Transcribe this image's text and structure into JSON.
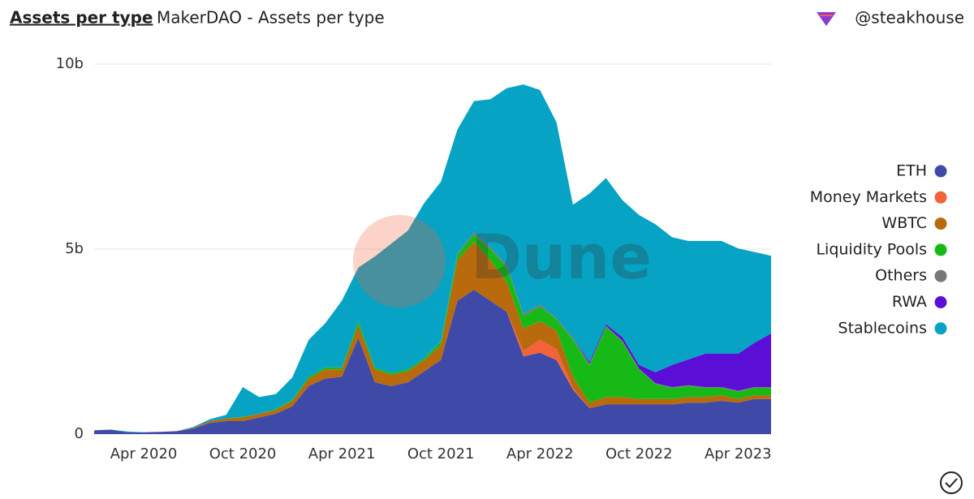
{
  "header": {
    "tab": "Assets per type",
    "title": "MakerDAO - Assets per type",
    "author": "@steakhouse"
  },
  "chart_data": {
    "type": "stacked-area",
    "watermark": "Dune",
    "x": [
      "2020-01",
      "2020-02",
      "2020-03",
      "2020-04",
      "2020-05",
      "2020-06",
      "2020-07",
      "2020-08",
      "2020-09",
      "2020-10",
      "2020-11",
      "2020-12",
      "2021-01",
      "2021-02",
      "2021-03",
      "2021-04",
      "2021-05",
      "2021-06",
      "2021-07",
      "2021-08",
      "2021-09",
      "2021-10",
      "2021-11",
      "2021-12",
      "2022-01",
      "2022-02",
      "2022-03",
      "2022-04",
      "2022-05",
      "2022-06",
      "2022-07",
      "2022-08",
      "2022-09",
      "2022-10",
      "2022-11",
      "2022-12",
      "2023-01",
      "2023-02",
      "2023-03",
      "2023-04",
      "2023-05",
      "2023-06"
    ],
    "xlim": [
      "2020-01",
      "2023-06"
    ],
    "xticks": [
      {
        "value": "2020-04",
        "label": "Apr 2020"
      },
      {
        "value": "2020-10",
        "label": "Oct 2020"
      },
      {
        "value": "2021-04",
        "label": "Apr 2021"
      },
      {
        "value": "2021-10",
        "label": "Oct 2021"
      },
      {
        "value": "2022-04",
        "label": "Apr 2022"
      },
      {
        "value": "2022-10",
        "label": "Oct 2022"
      },
      {
        "value": "2023-04",
        "label": "Apr 2023"
      }
    ],
    "ylim": [
      0,
      10
    ],
    "yticks": [
      0,
      {
        "value": 5,
        "label": "5b"
      },
      {
        "value": 10,
        "label": "10b"
      }
    ],
    "grid": true,
    "legend": "right",
    "series": [
      {
        "name": "ETH",
        "color": "#3f4aa8",
        "values": [
          0.1,
          0.12,
          0.05,
          0.05,
          0.06,
          0.08,
          0.15,
          0.3,
          0.35,
          0.35,
          0.45,
          0.55,
          0.75,
          1.3,
          1.5,
          1.55,
          2.6,
          1.4,
          1.3,
          1.4,
          1.7,
          2.0,
          3.6,
          3.9,
          3.6,
          3.3,
          2.1,
          2.2,
          2.0,
          1.2,
          0.7,
          0.8,
          0.8,
          0.8,
          0.8,
          0.8,
          0.85,
          0.85,
          0.9,
          0.85,
          0.95,
          0.95
        ]
      },
      {
        "name": "Money Markets",
        "color": "#f4623a",
        "values": [
          0,
          0,
          0,
          0,
          0,
          0,
          0,
          0,
          0,
          0,
          0,
          0,
          0,
          0,
          0,
          0,
          0,
          0,
          0,
          0,
          0,
          0,
          0,
          0,
          0,
          0,
          0.15,
          0.35,
          0.3,
          0.05,
          0,
          0,
          0,
          0,
          0,
          0,
          0,
          0,
          0,
          0,
          0,
          0
        ]
      },
      {
        "name": "WBTC",
        "color": "#b86a0c",
        "values": [
          0,
          0,
          0,
          0,
          0,
          0,
          0.02,
          0.05,
          0.07,
          0.1,
          0.1,
          0.1,
          0.15,
          0.2,
          0.25,
          0.2,
          0.35,
          0.35,
          0.3,
          0.3,
          0.3,
          0.4,
          1.1,
          1.3,
          1.1,
          0.8,
          0.6,
          0.5,
          0.5,
          0.3,
          0.15,
          0.2,
          0.2,
          0.15,
          0.15,
          0.15,
          0.15,
          0.15,
          0.15,
          0.1,
          0.1,
          0.1
        ]
      },
      {
        "name": "Liquidity Pools",
        "color": "#17b917",
        "values": [
          0,
          0,
          0,
          0,
          0,
          0,
          0,
          0,
          0,
          0.02,
          0,
          0.03,
          0.03,
          0.05,
          0.05,
          0.05,
          0.1,
          0.05,
          0.05,
          0.05,
          0.05,
          0.1,
          0.15,
          0.2,
          0.3,
          0.4,
          0.35,
          0.4,
          0.3,
          1.0,
          1.0,
          1.9,
          1.5,
          0.8,
          0.4,
          0.3,
          0.3,
          0.25,
          0.2,
          0.2,
          0.2,
          0.2
        ]
      },
      {
        "name": "Others",
        "color": "#787878",
        "values": [
          0,
          0,
          0,
          0,
          0,
          0,
          0,
          0,
          0,
          0,
          0,
          0,
          0,
          0,
          0,
          0,
          0,
          0,
          0,
          0,
          0,
          0.02,
          0.03,
          0.05,
          0.05,
          0.05,
          0.05,
          0.05,
          0.03,
          0.05,
          0.05,
          0.02,
          0.02,
          0.02,
          0.02,
          0.02,
          0.02,
          0.02,
          0.02,
          0.02,
          0.02,
          0.02
        ]
      },
      {
        "name": "RWA",
        "color": "#5b0fd6",
        "values": [
          0,
          0,
          0,
          0,
          0,
          0,
          0,
          0,
          0,
          0,
          0,
          0,
          0,
          0,
          0,
          0,
          0,
          0,
          0,
          0,
          0,
          0,
          0,
          0,
          0,
          0,
          0,
          0,
          0,
          0,
          0.05,
          0.05,
          0.1,
          0.1,
          0.3,
          0.6,
          0.7,
          0.9,
          0.9,
          1.0,
          1.2,
          1.45
        ]
      },
      {
        "name": "Stablecoins",
        "color": "#06a3c4",
        "values": [
          0,
          0,
          0.02,
          0,
          0,
          0,
          0.02,
          0.05,
          0.1,
          0.8,
          0.45,
          0.4,
          0.6,
          1.0,
          1.2,
          1.8,
          1.45,
          3.0,
          3.5,
          3.75,
          4.2,
          4.3,
          3.35,
          3.55,
          4.0,
          4.8,
          6.2,
          5.8,
          5.3,
          3.6,
          4.55,
          3.95,
          3.7,
          4.05,
          4.0,
          3.45,
          3.2,
          3.05,
          3.05,
          2.85,
          2.45,
          2.1
        ]
      }
    ]
  }
}
